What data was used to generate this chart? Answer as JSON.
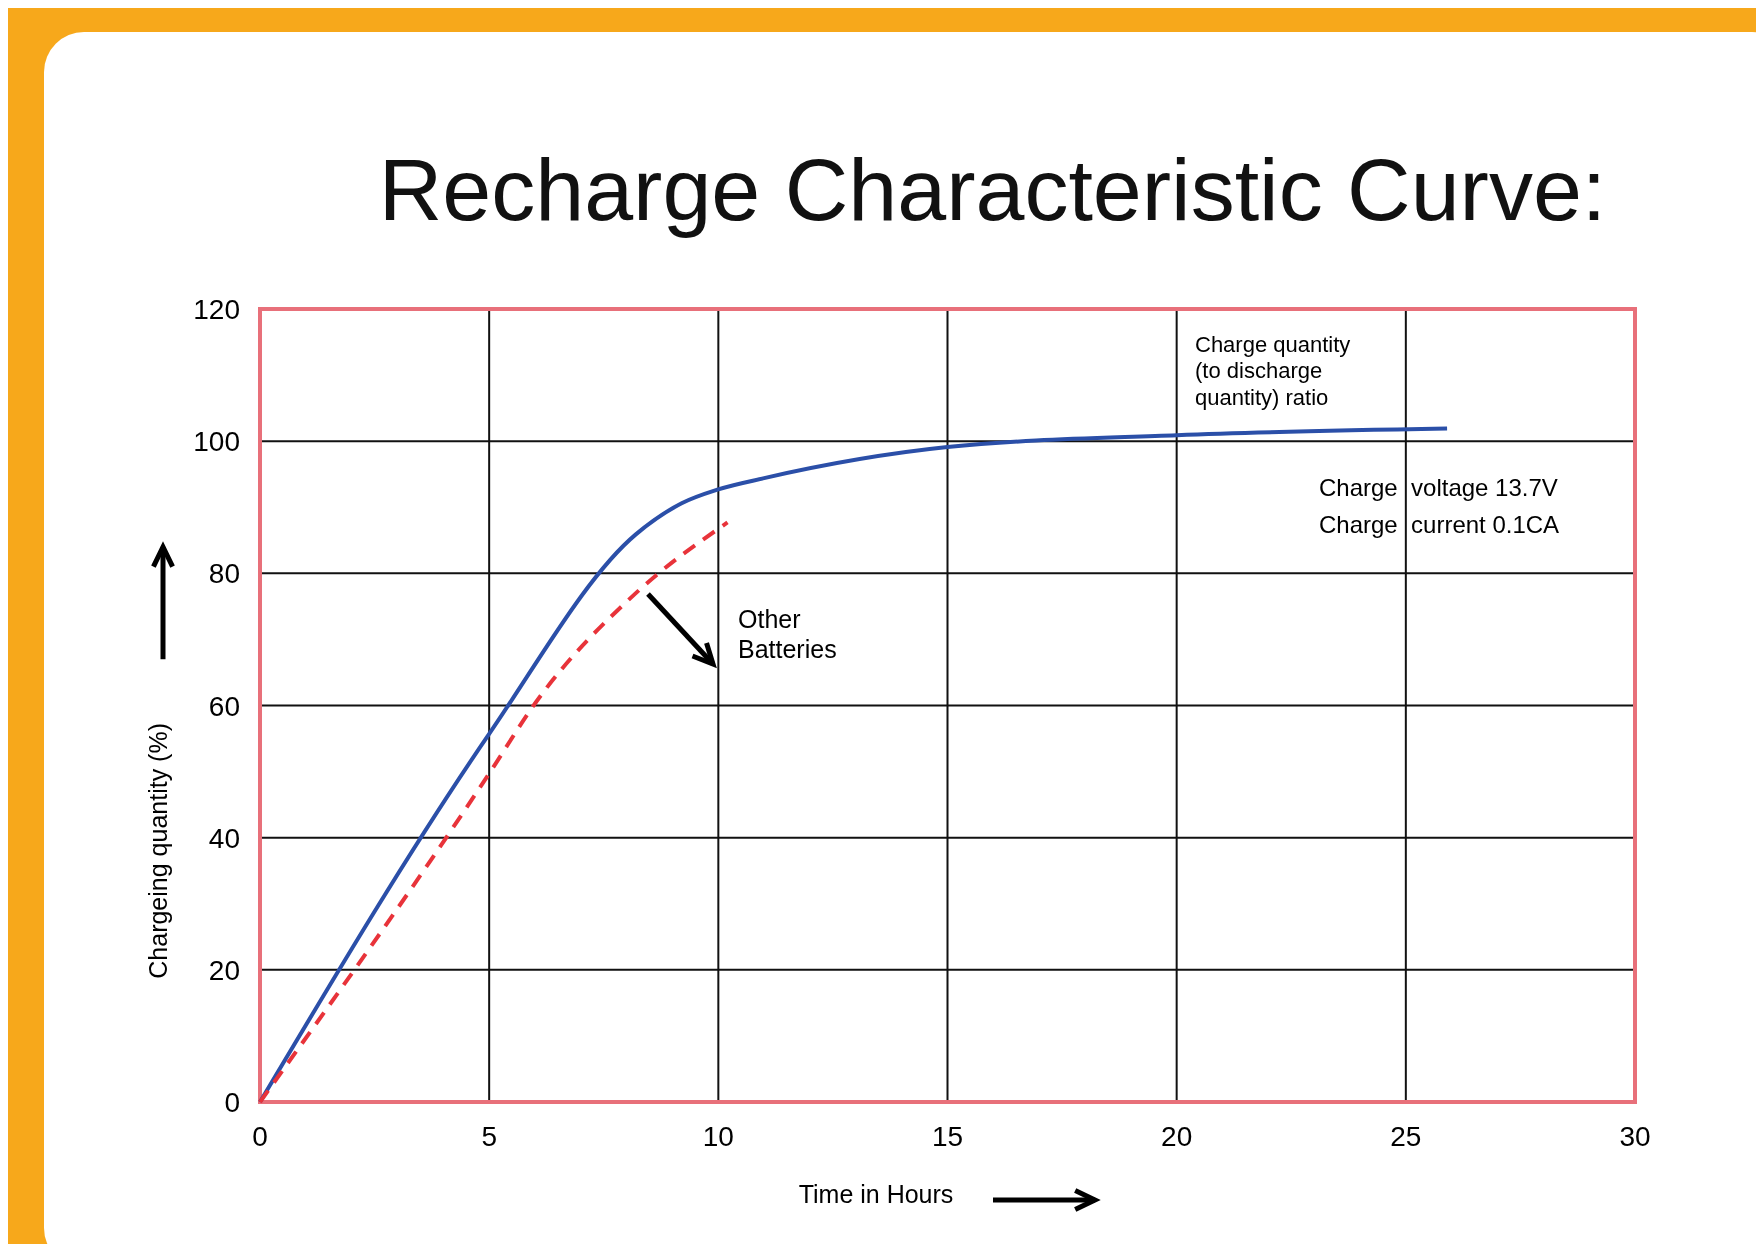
{
  "chart_data": {
    "type": "line",
    "title": "Recharge Characteristic Curve:",
    "xlabel": "Time in Hours",
    "ylabel": "Chargeing quantity (%)",
    "xlim": [
      0,
      30
    ],
    "ylim": [
      0,
      120
    ],
    "xticks": [
      0,
      5,
      10,
      15,
      20,
      25,
      30
    ],
    "yticks": [
      0,
      20,
      40,
      60,
      80,
      100,
      120
    ],
    "grid": true,
    "series": [
      {
        "color": "#2b4fa8",
        "line_style": "solid",
        "x": [
          0,
          5,
          8.2,
          9.2,
          10,
          11,
          15,
          20,
          25.9
        ],
        "values": [
          0,
          55.7,
          85.9,
          90.6,
          92.7,
          94.4,
          99.1,
          100.9,
          101.9
        ]
      },
      {
        "color": "#e8333a",
        "line_style": "dashed",
        "x": [
          0,
          5,
          6,
          8.2,
          10.2
        ],
        "values": [
          0,
          49.7,
          60.3,
          77,
          87.7
        ]
      }
    ],
    "annotations": [
      "Charge quantity\n(to discharge\nquantity) ratio",
      "Charge  voltage 13.7V",
      "Charge  current 0.1CA",
      "Other\nBatteries"
    ]
  }
}
